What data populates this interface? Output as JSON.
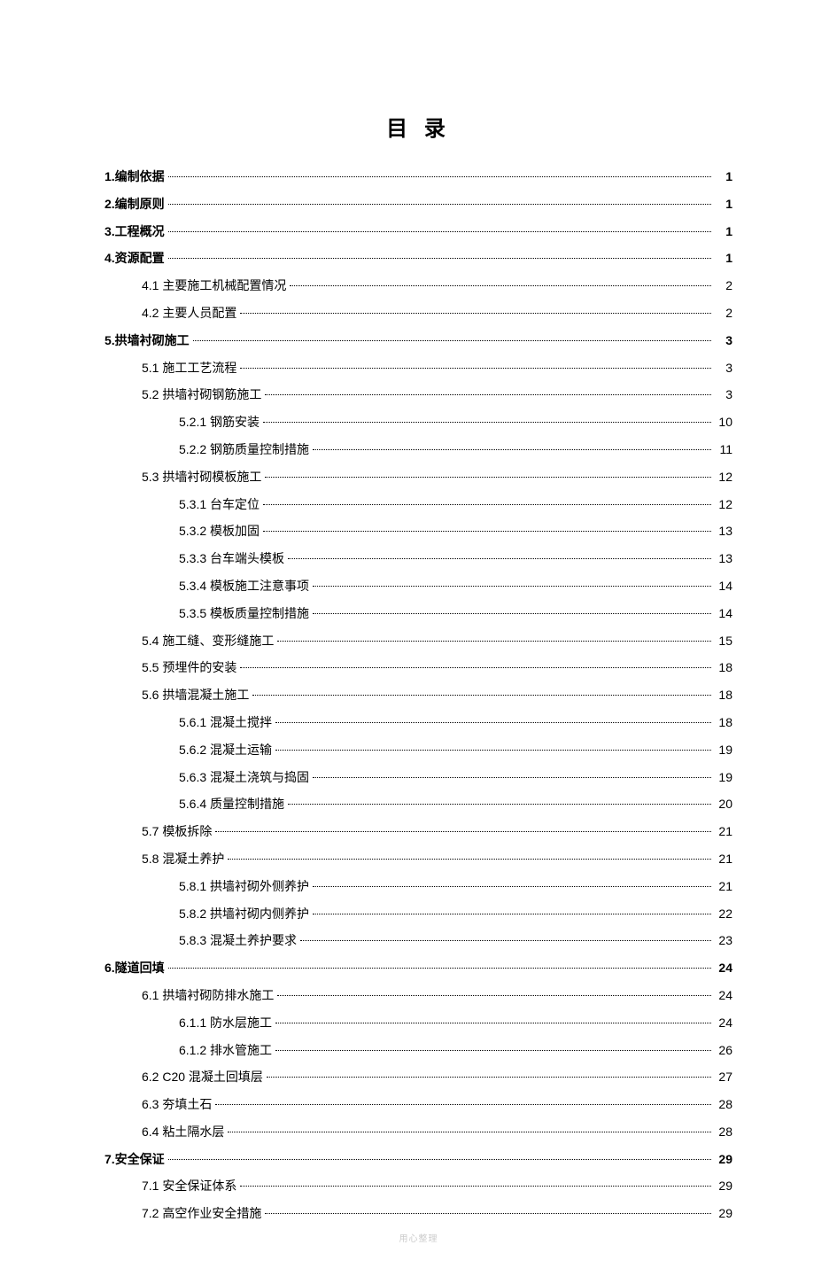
{
  "title": "目 录",
  "footer": "用心整理",
  "entries": [
    {
      "level": 0,
      "bold": true,
      "label": "1.编制依据",
      "page": "1"
    },
    {
      "level": 0,
      "bold": true,
      "label": "2.编制原则",
      "page": "1"
    },
    {
      "level": 0,
      "bold": true,
      "label": "3.工程概况",
      "page": "1"
    },
    {
      "level": 0,
      "bold": true,
      "label": "4.资源配置",
      "page": "1"
    },
    {
      "level": 1,
      "bold": false,
      "label": "4.1 主要施工机械配置情况 ",
      "page": "2"
    },
    {
      "level": 1,
      "bold": false,
      "label": "4.2 主要人员配置",
      "page": "2"
    },
    {
      "level": 0,
      "bold": true,
      "label": "5.拱墙衬砌施工",
      "page": "3"
    },
    {
      "level": 1,
      "bold": false,
      "label": "5.1 施工工艺流程",
      "page": "3"
    },
    {
      "level": 1,
      "bold": false,
      "label": "5.2 拱墙衬砌钢筋施工 ",
      "page": "3"
    },
    {
      "level": 2,
      "bold": false,
      "label": "5.2.1 钢筋安装",
      "page": "10"
    },
    {
      "level": 2,
      "bold": false,
      "label": "5.2.2 钢筋质量控制措施 ",
      "page": "11"
    },
    {
      "level": 1,
      "bold": false,
      "label": "5.3 拱墙衬砌模板施工 ",
      "page": "12"
    },
    {
      "level": 2,
      "bold": false,
      "label": "5.3.1 台车定位  ",
      "page": "12"
    },
    {
      "level": 2,
      "bold": false,
      "label": "5.3.2 模板加固",
      "page": "13"
    },
    {
      "level": 2,
      "bold": false,
      "label": "5.3.3 台车端头模板 ",
      "page": "13"
    },
    {
      "level": 2,
      "bold": false,
      "label": "5.3.4 模板施工注意事项 ",
      "page": "14"
    },
    {
      "level": 2,
      "bold": false,
      "label": "5.3.5 模板质量控制措施 ",
      "page": "14"
    },
    {
      "level": 1,
      "bold": false,
      "label": "5.4 施工缝、变形缝施工",
      "page": "15"
    },
    {
      "level": 1,
      "bold": false,
      "label": "5.5 预埋件的安装",
      "page": "18"
    },
    {
      "level": 1,
      "bold": false,
      "label": "5.6 拱墙混凝土施工 ",
      "page": "18"
    },
    {
      "level": 2,
      "bold": false,
      "label": "5.6.1 混凝土搅拌 ",
      "page": "18"
    },
    {
      "level": 2,
      "bold": false,
      "label": "5.6.2 混凝土运输 ",
      "page": "19"
    },
    {
      "level": 2,
      "bold": false,
      "label": "5.6.3 混凝土浇筑与捣固 ",
      "page": "19"
    },
    {
      "level": 2,
      "bold": false,
      "label": "5.6.4 质量控制措施 ",
      "page": "20"
    },
    {
      "level": 1,
      "bold": false,
      "label": "5.7 模板拆除",
      "page": "21"
    },
    {
      "level": 1,
      "bold": false,
      "label": "5.8 混凝土养护 ",
      "page": "21"
    },
    {
      "level": 2,
      "bold": false,
      "label": "5.8.1 拱墙衬砌外侧养护 ",
      "page": "21"
    },
    {
      "level": 2,
      "bold": false,
      "label": "5.8.2 拱墙衬砌内侧养护 ",
      "page": "22"
    },
    {
      "level": 2,
      "bold": false,
      "label": "5.8.3 混凝土养护要求 ",
      "page": "23"
    },
    {
      "level": 0,
      "bold": true,
      "label": "6.隧道回填",
      "page": "24"
    },
    {
      "level": 1,
      "bold": false,
      "label": "6.1 拱墙衬砌防排水施工",
      "page": "24"
    },
    {
      "level": 2,
      "bold": false,
      "label": "6.1.1 防水层施工 ",
      "page": "24"
    },
    {
      "level": 2,
      "bold": false,
      "label": "6.1.2 排水管施工 ",
      "page": "26"
    },
    {
      "level": 1,
      "bold": false,
      "label": "6.2 C20 混凝土回填层  ",
      "page": "27"
    },
    {
      "level": 1,
      "bold": false,
      "label": "6.3 夯填土石  ",
      "page": "28"
    },
    {
      "level": 1,
      "bold": false,
      "label": "6.4 粘土隔水层  ",
      "page": "28"
    },
    {
      "level": 0,
      "bold": true,
      "label": "7.安全保证",
      "page": "29"
    },
    {
      "level": 1,
      "bold": false,
      "label": "7.1 安全保证体系",
      "page": "29"
    },
    {
      "level": 1,
      "bold": false,
      "label": "7.2 高空作业安全措施 ",
      "page": "29"
    }
  ]
}
